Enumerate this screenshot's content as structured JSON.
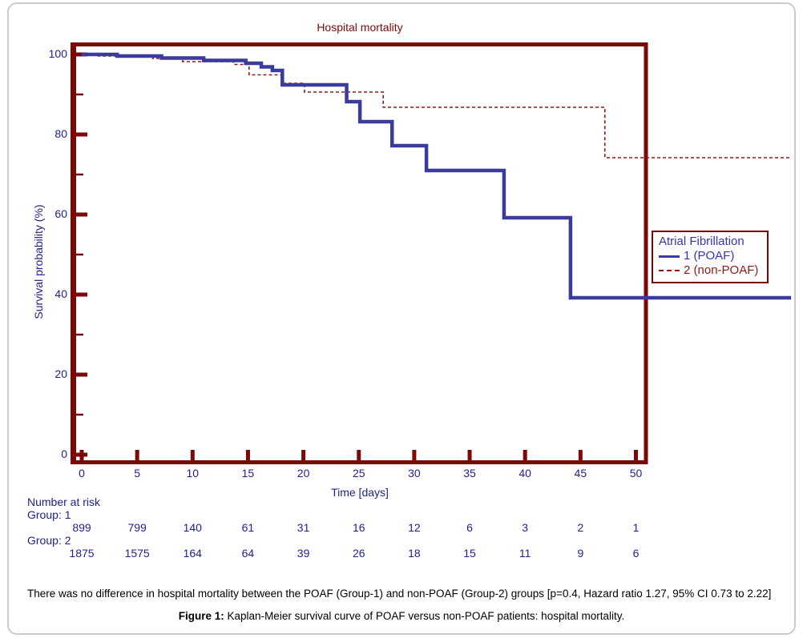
{
  "figure": {
    "title": "Hospital mortality",
    "x_axis_label": "Time [days]",
    "y_axis_label": "Survival probability (%)"
  },
  "chart_data": {
    "type": "line",
    "subtype": "kaplan-meier-step",
    "title": "Hospital mortality",
    "xlabel": "Time [days]",
    "ylabel": "Survival probability (%)",
    "xlim": [
      0,
      50
    ],
    "ylim": [
      0,
      100
    ],
    "grid": false,
    "legend_position": "right-middle",
    "x_ticks": [
      0,
      5,
      10,
      15,
      20,
      25,
      30,
      35,
      40,
      45,
      50
    ],
    "y_ticks": [
      0,
      20,
      40,
      60,
      80,
      100
    ],
    "y_minor_ticks": [
      10,
      30,
      50,
      70,
      90
    ],
    "series": [
      {
        "name": "1 (POAF)",
        "color": "#3b3b9e",
        "style": "solid",
        "points": [
          [
            0,
            100
          ],
          [
            3.2,
            99.6
          ],
          [
            7.2,
            99.1
          ],
          [
            11,
            98.5
          ],
          [
            14.8,
            97.8
          ],
          [
            16.2,
            96.9
          ],
          [
            17.2,
            96.0
          ],
          [
            18.1,
            92.4
          ],
          [
            23.9,
            88.2
          ],
          [
            25.1,
            83.2
          ],
          [
            28,
            77.2
          ],
          [
            31.1,
            71
          ],
          [
            38.1,
            59.2
          ],
          [
            44.1,
            39.2
          ],
          [
            64,
            39.2
          ]
        ]
      },
      {
        "name": "2 (non-POAF)",
        "color": "#8f1818",
        "style": "dashed",
        "points": [
          [
            0,
            100
          ],
          [
            1.5,
            99.6
          ],
          [
            6.4,
            99.0
          ],
          [
            9.1,
            98.2
          ],
          [
            13.7,
            97.5
          ],
          [
            15.1,
            94.9
          ],
          [
            18,
            92.8
          ],
          [
            20.1,
            90.6
          ],
          [
            27.2,
            86.8
          ],
          [
            47.2,
            74.2
          ],
          [
            64,
            74.2
          ]
        ]
      }
    ]
  },
  "legend": {
    "title": "Atrial Fibrillation",
    "items": [
      {
        "label": "1 (POAF)",
        "color": "#3434bb",
        "line_color": "#3b3b9e",
        "style": "solid"
      },
      {
        "label": "2 (non-POAF)",
        "color": "#8f1818",
        "line_color": "#8f1818",
        "style": "dashed"
      }
    ]
  },
  "risk_table": {
    "heading": "Number at risk",
    "groups": [
      {
        "label": "Group: 1",
        "values": [
          "899",
          "799",
          "140",
          "61",
          "31",
          "16",
          "12",
          "6",
          "3",
          "2",
          "1"
        ]
      },
      {
        "label": "Group: 2",
        "values": [
          "1875",
          "1575",
          "164",
          "64",
          "39",
          "26",
          "18",
          "15",
          "11",
          "9",
          "6"
        ]
      }
    ]
  },
  "caption": {
    "body": "There was no difference in hospital mortality between the POAF (Group-1) and non-POAF (Group-2) groups [p=0.4, Hazard ratio 1.27, 95% CI 0.73 to 2.22]",
    "figure_label": "Figure 1:",
    "figure_text": " Kaplan-Meier survival curve of POAF versus non-POAF patients: hospital mortality."
  },
  "colors": {
    "frame": "#7d0808",
    "axis_text": "#1f1f8c",
    "poaf_curve": "#3b3b9e",
    "non_poaf_curve": "#8f1818",
    "border_gray": "#c9ccce"
  }
}
